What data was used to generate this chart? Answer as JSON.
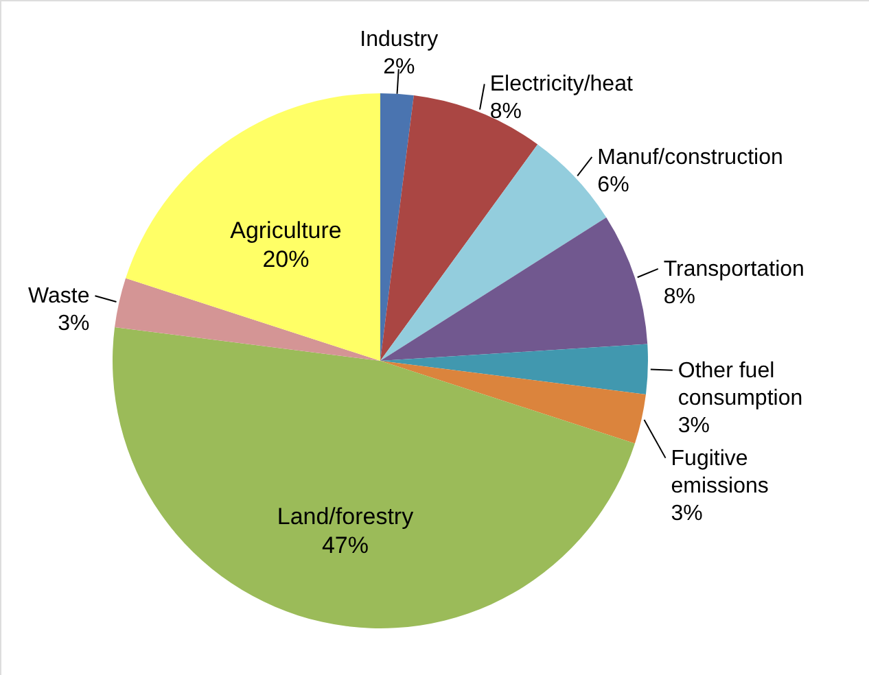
{
  "chart_data": {
    "type": "pie",
    "categories": [
      "Industry",
      "Electricity/heat",
      "Manuf/construction",
      "Transportation",
      "Other fuel consumption",
      "Fugitive emissions",
      "Land/forestry",
      "Waste",
      "Agriculture"
    ],
    "values": [
      2,
      8,
      6,
      8,
      3,
      3,
      47,
      3,
      20
    ],
    "value_labels": [
      "2%",
      "8%",
      "6%",
      "8%",
      "3%",
      "3%",
      "47%",
      "3%",
      "20%"
    ],
    "colors": [
      "#4a74b0",
      "#aa4643",
      "#93cddd",
      "#71588f",
      "#4198af",
      "#db843d",
      "#9bbb59",
      "#d49595",
      "#ffff66"
    ]
  }
}
